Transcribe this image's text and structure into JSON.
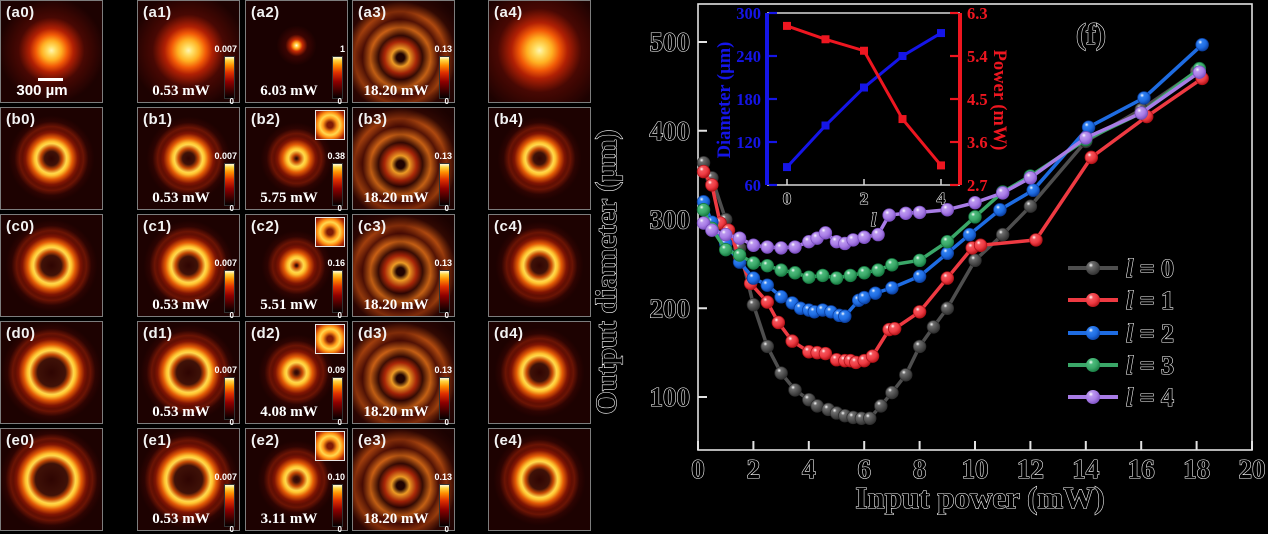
{
  "figure": {
    "panel_label": "(f)",
    "scale_bar_label": "300 µm"
  },
  "beam_grid": {
    "panels": [
      {
        "id": "a0",
        "label": "(a0)",
        "row": 0,
        "col": 0,
        "beam": "blob",
        "size": 22,
        "scalebar": "300 µm"
      },
      {
        "id": "a1",
        "label": "(a1)",
        "row": 0,
        "col": 1,
        "beam": "blob",
        "size": 24,
        "power": "0.53 mW",
        "cbar_max": "0.007",
        "cbar_min": "0"
      },
      {
        "id": "a2",
        "label": "(a2)",
        "row": 0,
        "col": 2,
        "beam": "dot",
        "size": 5,
        "power": "6.03 mW",
        "cbar_max": "1",
        "cbar_min": "0"
      },
      {
        "id": "a3",
        "label": "(a3)",
        "row": 0,
        "col": 3,
        "beam": "speckle",
        "size": 0,
        "power": "18.20 mW",
        "cbar_max": "0.13",
        "cbar_min": "0"
      },
      {
        "id": "a4",
        "label": "(a4)",
        "row": 0,
        "col": 4,
        "beam": "blob",
        "size": 28
      },
      {
        "id": "b0",
        "label": "(b0)",
        "row": 1,
        "col": 0,
        "beam": "ring",
        "size": 16
      },
      {
        "id": "b1",
        "label": "(b1)",
        "row": 1,
        "col": 1,
        "beam": "ring",
        "size": 15,
        "power": "0.53 mW",
        "cbar_max": "0.007",
        "cbar_min": "0"
      },
      {
        "id": "b2",
        "label": "(b2)",
        "row": 1,
        "col": 2,
        "beam": "ring",
        "size": 9,
        "power": "5.75 mW",
        "cbar_max": "0.38",
        "cbar_min": "0",
        "inset": true
      },
      {
        "id": "b3",
        "label": "(b3)",
        "row": 1,
        "col": 3,
        "beam": "speckle",
        "size": 0,
        "power": "18.20 mW",
        "cbar_max": "0.13",
        "cbar_min": "0"
      },
      {
        "id": "b4",
        "label": "(b4)",
        "row": 1,
        "col": 4,
        "beam": "ring",
        "size": 15
      },
      {
        "id": "c0",
        "label": "(c0)",
        "row": 2,
        "col": 0,
        "beam": "ring",
        "size": 19
      },
      {
        "id": "c1",
        "label": "(c1)",
        "row": 2,
        "col": 1,
        "beam": "ring",
        "size": 18,
        "power": "0.53 mW",
        "cbar_max": "0.007",
        "cbar_min": "0"
      },
      {
        "id": "c2",
        "label": "(c2)",
        "row": 2,
        "col": 2,
        "beam": "ring",
        "size": 8,
        "power": "5.51 mW",
        "cbar_max": "0.16",
        "cbar_min": "0",
        "inset": true
      },
      {
        "id": "c3",
        "label": "(c3)",
        "row": 2,
        "col": 3,
        "beam": "speckle",
        "size": 0,
        "power": "18.20 mW",
        "cbar_max": "0.13",
        "cbar_min": "0"
      },
      {
        "id": "c4",
        "label": "(c4)",
        "row": 2,
        "col": 4,
        "beam": "ring",
        "size": 17
      },
      {
        "id": "d0",
        "label": "(d0)",
        "row": 3,
        "col": 0,
        "beam": "ring",
        "size": 23
      },
      {
        "id": "d1",
        "label": "(d1)",
        "row": 3,
        "col": 1,
        "beam": "ring",
        "size": 21,
        "power": "0.53 mW",
        "cbar_max": "0.007",
        "cbar_min": "0"
      },
      {
        "id": "d2",
        "label": "(d2)",
        "row": 3,
        "col": 2,
        "beam": "ring",
        "size": 11,
        "power": "4.08 mW",
        "cbar_max": "0.09",
        "cbar_min": "0",
        "inset": true
      },
      {
        "id": "d3",
        "label": "(d3)",
        "row": 3,
        "col": 3,
        "beam": "speckle",
        "size": 0,
        "power": "18.20 mW",
        "cbar_max": "0.13",
        "cbar_min": "0"
      },
      {
        "id": "d4",
        "label": "(d4)",
        "row": 3,
        "col": 4,
        "beam": "ring",
        "size": 18
      },
      {
        "id": "e0",
        "label": "(e0)",
        "row": 4,
        "col": 0,
        "beam": "ring",
        "size": 25
      },
      {
        "id": "e1",
        "label": "(e1)",
        "row": 4,
        "col": 1,
        "beam": "ring",
        "size": 23,
        "power": "0.53 mW",
        "cbar_max": "0.007",
        "cbar_min": "0"
      },
      {
        "id": "e2",
        "label": "(e2)",
        "row": 4,
        "col": 2,
        "beam": "ring",
        "size": 12,
        "power": "3.11 mW",
        "cbar_max": "0.10",
        "cbar_min": "0",
        "inset": true
      },
      {
        "id": "e3",
        "label": "(e3)",
        "row": 4,
        "col": 3,
        "beam": "speckle",
        "size": 0,
        "power": "18.20 mW",
        "cbar_max": "0.13",
        "cbar_min": "0"
      },
      {
        "id": "e4",
        "label": "(e4)",
        "row": 4,
        "col": 4,
        "beam": "ring",
        "size": 19
      }
    ]
  },
  "chart_data": {
    "type": "line",
    "panel_label": "(f)",
    "xlabel": "Input power (mW)",
    "ylabel": "Output diameter (µm)",
    "xlim": [
      0,
      20
    ],
    "ylim": [
      40,
      543
    ],
    "xticks": [
      0,
      2,
      4,
      6,
      8,
      10,
      12,
      14,
      16,
      18,
      20
    ],
    "yticks": [
      100,
      200,
      300,
      400,
      500
    ],
    "grid": false,
    "legend_position": "right-middle",
    "series": [
      {
        "name": "l = 0",
        "color": "#4e4e4e",
        "dot": "#6e6e6e",
        "dark": "#2e2e2e",
        "points": [
          [
            0.2,
            364
          ],
          [
            0.5,
            347
          ],
          [
            1,
            300
          ],
          [
            1.5,
            268
          ],
          [
            2,
            204
          ],
          [
            2.5,
            157
          ],
          [
            3,
            127
          ],
          [
            3.5,
            108
          ],
          [
            4,
            97
          ],
          [
            4.3,
            90
          ],
          [
            4.7,
            86
          ],
          [
            5,
            82
          ],
          [
            5.3,
            79
          ],
          [
            5.6,
            77
          ],
          [
            5.9,
            76
          ],
          [
            6.2,
            76
          ],
          [
            6.6,
            90
          ],
          [
            7,
            105
          ],
          [
            7.5,
            125
          ],
          [
            8,
            157
          ],
          [
            8.5,
            179
          ],
          [
            9,
            200
          ],
          [
            10,
            254
          ],
          [
            11,
            283
          ],
          [
            12,
            315
          ],
          [
            14,
            388
          ],
          [
            16,
            424
          ],
          [
            18,
            467
          ]
        ]
      },
      {
        "name": "l = 1",
        "color": "#ee3a42",
        "dot": "#f4555b",
        "dark": "#b01318",
        "points": [
          [
            0.2,
            354
          ],
          [
            0.5,
            339
          ],
          [
            0.8,
            296
          ],
          [
            1.1,
            288
          ],
          [
            1.5,
            258
          ],
          [
            1.9,
            228
          ],
          [
            2.5,
            207
          ],
          [
            2.9,
            184
          ],
          [
            3.4,
            163
          ],
          [
            4,
            151
          ],
          [
            4.3,
            150
          ],
          [
            4.6,
            149
          ],
          [
            5,
            142
          ],
          [
            5.3,
            141
          ],
          [
            5.5,
            141
          ],
          [
            5.7,
            139
          ],
          [
            6,
            141
          ],
          [
            6.3,
            146
          ],
          [
            6.9,
            176
          ],
          [
            7.1,
            177
          ],
          [
            8,
            196
          ],
          [
            9,
            234
          ],
          [
            9.9,
            268
          ],
          [
            10.2,
            271
          ],
          [
            12.2,
            277
          ],
          [
            14.2,
            370
          ],
          [
            16.2,
            416
          ],
          [
            18.2,
            459
          ]
        ]
      },
      {
        "name": "l = 2",
        "color": "#1e6ce2",
        "dot": "#2f7ff0",
        "dark": "#0c3f9e",
        "points": [
          [
            0.2,
            320
          ],
          [
            0.5,
            297
          ],
          [
            1,
            273
          ],
          [
            1.5,
            252
          ],
          [
            2,
            234
          ],
          [
            2.5,
            226
          ],
          [
            3,
            213
          ],
          [
            3.4,
            206
          ],
          [
            3.7,
            200
          ],
          [
            4,
            198
          ],
          [
            4.2,
            196
          ],
          [
            4.5,
            198
          ],
          [
            4.8,
            196
          ],
          [
            5.1,
            192
          ],
          [
            5.3,
            191
          ],
          [
            5.8,
            209
          ],
          [
            6,
            212
          ],
          [
            6.4,
            217
          ],
          [
            7,
            223
          ],
          [
            8,
            236
          ],
          [
            9,
            262
          ],
          [
            9.8,
            283
          ],
          [
            10.9,
            311
          ],
          [
            12.1,
            333
          ],
          [
            14.1,
            404
          ],
          [
            16.1,
            437
          ],
          [
            18.2,
            497
          ]
        ]
      },
      {
        "name": "l = 3",
        "color": "#3aa768",
        "dot": "#4cbb7c",
        "dark": "#167a41",
        "points": [
          [
            0.2,
            311
          ],
          [
            0.5,
            290
          ],
          [
            1,
            266
          ],
          [
            1.5,
            260
          ],
          [
            2,
            251
          ],
          [
            2.5,
            248
          ],
          [
            3,
            243
          ],
          [
            3.5,
            240
          ],
          [
            4,
            235
          ],
          [
            4.5,
            237
          ],
          [
            5,
            234
          ],
          [
            5.5,
            237
          ],
          [
            6,
            240
          ],
          [
            6.5,
            243
          ],
          [
            7,
            249
          ],
          [
            8,
            254
          ],
          [
            9,
            275
          ],
          [
            10,
            303
          ],
          [
            11,
            331
          ],
          [
            12,
            349
          ],
          [
            14,
            390
          ],
          [
            16,
            420
          ],
          [
            18.1,
            470
          ]
        ]
      },
      {
        "name": "l = 4",
        "color": "#a87ce6",
        "dot": "#bb97ef",
        "dark": "#7b4fc0",
        "points": [
          [
            0.2,
            296
          ],
          [
            0.5,
            288
          ],
          [
            1,
            283
          ],
          [
            1.5,
            279
          ],
          [
            2,
            271
          ],
          [
            2.5,
            269
          ],
          [
            3,
            268
          ],
          [
            3.5,
            269
          ],
          [
            4,
            275
          ],
          [
            4.3,
            279
          ],
          [
            4.6,
            285
          ],
          [
            5,
            275
          ],
          [
            5.3,
            273
          ],
          [
            5.6,
            277
          ],
          [
            6,
            280
          ],
          [
            6.5,
            283
          ],
          [
            6.9,
            305
          ],
          [
            7.5,
            307
          ],
          [
            8,
            308
          ],
          [
            9,
            311
          ],
          [
            10,
            319
          ],
          [
            11,
            330
          ],
          [
            12,
            347
          ],
          [
            14,
            392
          ],
          [
            16,
            420
          ],
          [
            18.1,
            466
          ]
        ]
      }
    ],
    "inset": {
      "xlabel": "l",
      "x": [
        0,
        1,
        2,
        3,
        4
      ],
      "xticks": [
        0,
        2,
        4
      ],
      "left_axis": {
        "label": "Diameter (µm)",
        "color": "#1515e8",
        "range": [
          60,
          300
        ],
        "ticks": [
          60,
          120,
          180,
          240,
          300
        ],
        "values": [
          85,
          143,
          196,
          240,
          272
        ]
      },
      "right_axis": {
        "label": "Power (mW)",
        "color": "#ee1620",
        "range": [
          2.7,
          6.3
        ],
        "ticks": [
          2.7,
          3.6,
          4.5,
          5.4,
          6.3
        ],
        "values": [
          6.03,
          5.75,
          5.51,
          4.08,
          3.11
        ]
      }
    }
  }
}
